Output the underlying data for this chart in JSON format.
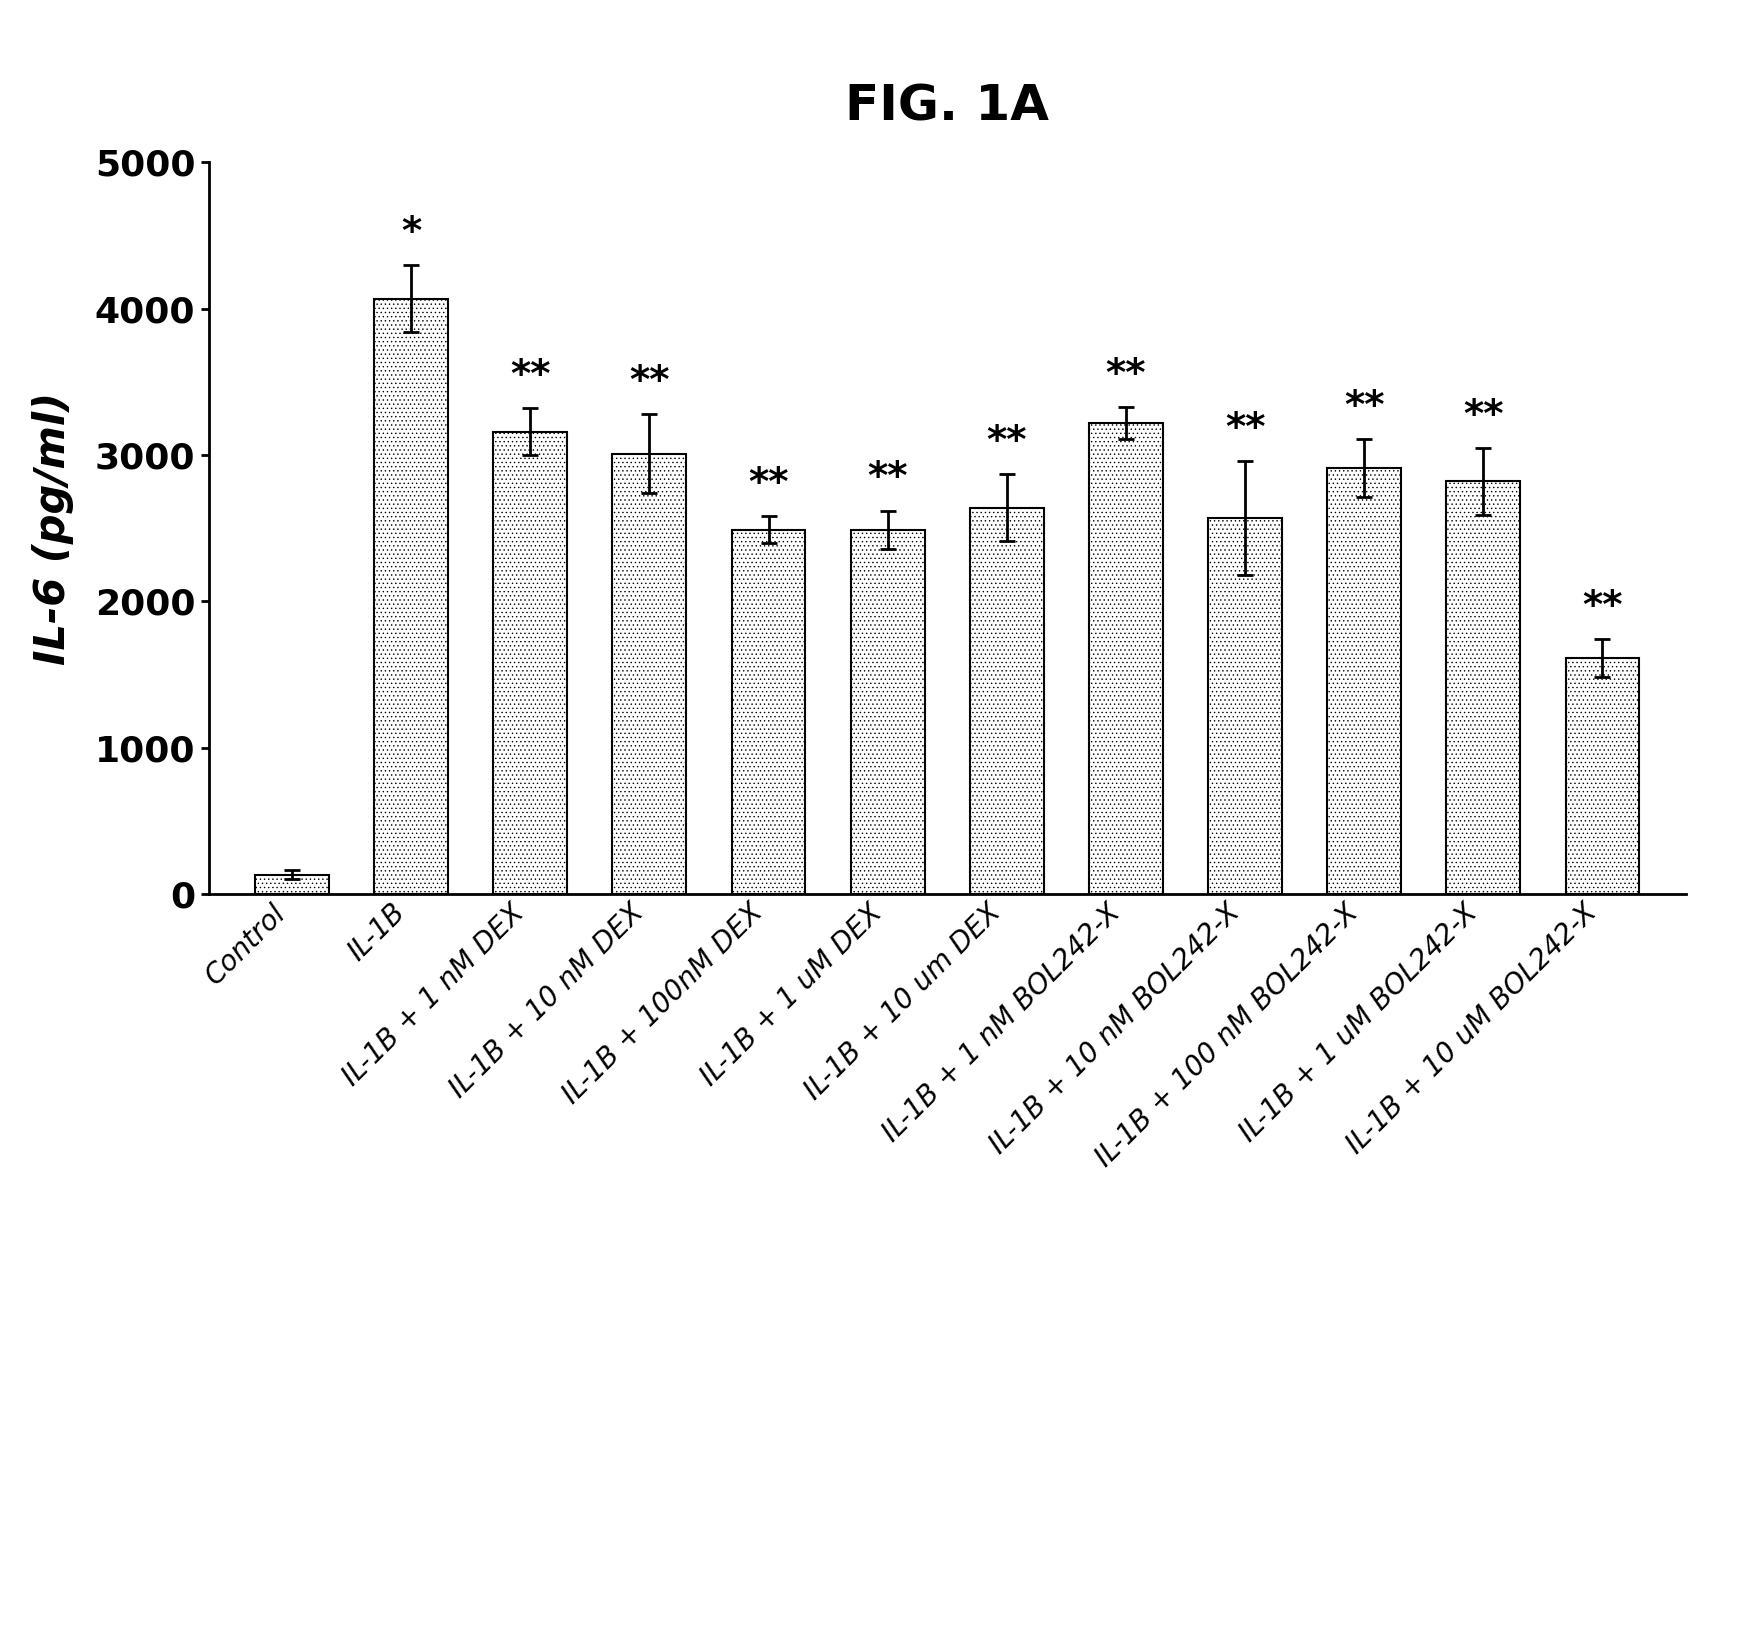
{
  "title": "FIG. 1A",
  "ylabel": "IL-6 (pg/ml)",
  "categories": [
    "Control",
    "IL-1B",
    "IL-1B + 1 nM DEX",
    "IL-1B + 10 nM DEX",
    "IL-1B + 100nM DEX",
    "IL-1B + 1 uM DEX",
    "IL-1B + 10 um DEX",
    "IL-1B + 1 nM BOL242-X",
    "IL-1B + 10 nM BOL242-X",
    "IL-1B + 100 nM BOL242-X",
    "IL-1B + 1 uM BOL242-X",
    "IL-1B + 10 uM BOL242-X"
  ],
  "values": [
    130,
    4070,
    3160,
    3010,
    2490,
    2490,
    2640,
    3220,
    2570,
    2910,
    2820,
    1610
  ],
  "errors": [
    30,
    230,
    160,
    270,
    90,
    130,
    230,
    110,
    390,
    200,
    230,
    130
  ],
  "significance": [
    "",
    "*",
    "**",
    "**",
    "**",
    "**",
    "**",
    "**",
    "**",
    "**",
    "**",
    "**"
  ],
  "ylim": [
    0,
    5000
  ],
  "yticks": [
    0,
    1000,
    2000,
    3000,
    4000,
    5000
  ],
  "bar_color": "#ffffff",
  "bar_edgecolor": "#000000",
  "hatch": "....",
  "background_color": "#ffffff",
  "title_fontsize": 36,
  "axis_label_fontsize": 30,
  "tick_fontsize": 26,
  "xtick_fontsize": 20,
  "sig_fontsize": 28
}
